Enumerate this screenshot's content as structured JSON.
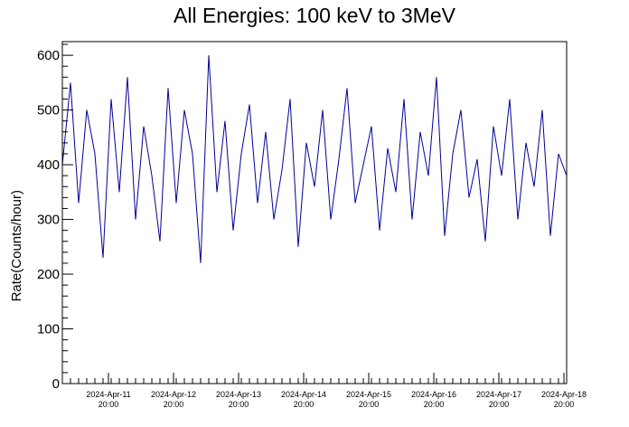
{
  "chart_data": {
    "type": "line",
    "title": "All Energies:  100 keV to 3MeV",
    "xlabel": "",
    "ylabel": "Rate(Counts/hour)",
    "ylim": [
      0,
      625
    ],
    "yticks": [
      "0",
      "100",
      "200",
      "300",
      "400",
      "500",
      "600"
    ],
    "xlim": [
      "2024-Apr-11 03:00",
      "2024-Apr-18 21:00"
    ],
    "xticks": [
      {
        "date": "2024-Apr-11",
        "time": "20:00"
      },
      {
        "date": "2024-Apr-12",
        "time": "20:00"
      },
      {
        "date": "2024-Apr-13",
        "time": "20:00"
      },
      {
        "date": "2024-Apr-14",
        "time": "20:00"
      },
      {
        "date": "2024-Apr-15",
        "time": "20:00"
      },
      {
        "date": "2024-Apr-16",
        "time": "20:00"
      },
      {
        "date": "2024-Apr-17",
        "time": "20:00"
      },
      {
        "date": "2024-Apr-18",
        "time": "20:00"
      }
    ],
    "grid": false,
    "series": [
      {
        "color": "#000099",
        "x": [
          "2024-Apr-11 03:00",
          "2024-Apr-11 06:00",
          "2024-Apr-11 09:00",
          "2024-Apr-11 12:00",
          "2024-Apr-11 15:00",
          "2024-Apr-11 18:00",
          "2024-Apr-11 21:00",
          "2024-Apr-12 00:00",
          "2024-Apr-12 03:00",
          "2024-Apr-12 06:00",
          "2024-Apr-12 09:00",
          "2024-Apr-12 12:00",
          "2024-Apr-12 15:00",
          "2024-Apr-12 18:00",
          "2024-Apr-12 21:00",
          "2024-Apr-13 00:00",
          "2024-Apr-13 03:00",
          "2024-Apr-13 06:00",
          "2024-Apr-13 09:00",
          "2024-Apr-13 12:00",
          "2024-Apr-13 15:00",
          "2024-Apr-13 18:00",
          "2024-Apr-13 21:00",
          "2024-Apr-14 00:00",
          "2024-Apr-14 03:00",
          "2024-Apr-14 06:00",
          "2024-Apr-14 09:00",
          "2024-Apr-14 12:00",
          "2024-Apr-14 15:00",
          "2024-Apr-14 18:00",
          "2024-Apr-14 21:00",
          "2024-Apr-15 00:00",
          "2024-Apr-15 03:00",
          "2024-Apr-15 06:00",
          "2024-Apr-15 09:00",
          "2024-Apr-15 12:00",
          "2024-Apr-15 15:00",
          "2024-Apr-15 18:00",
          "2024-Apr-15 21:00",
          "2024-Apr-16 00:00",
          "2024-Apr-16 03:00",
          "2024-Apr-16 06:00",
          "2024-Apr-16 09:00",
          "2024-Apr-16 12:00",
          "2024-Apr-16 15:00",
          "2024-Apr-16 18:00",
          "2024-Apr-16 21:00",
          "2024-Apr-17 00:00",
          "2024-Apr-17 03:00",
          "2024-Apr-17 06:00",
          "2024-Apr-17 09:00",
          "2024-Apr-17 12:00",
          "2024-Apr-17 15:00",
          "2024-Apr-17 18:00",
          "2024-Apr-17 21:00",
          "2024-Apr-18 00:00",
          "2024-Apr-18 03:00",
          "2024-Apr-18 06:00",
          "2024-Apr-18 09:00",
          "2024-Apr-18 12:00",
          "2024-Apr-18 15:00",
          "2024-Apr-18 18:00",
          "2024-Apr-18 21:00"
        ],
        "y": [
          400,
          550,
          330,
          500,
          420,
          230,
          520,
          350,
          560,
          300,
          470,
          380,
          260,
          540,
          330,
          500,
          420,
          220,
          600,
          350,
          480,
          280,
          420,
          510,
          330,
          460,
          300,
          390,
          520,
          250,
          440,
          360,
          500,
          300,
          410,
          540,
          330,
          400,
          470,
          280,
          430,
          350,
          520,
          300,
          460,
          380,
          560,
          270,
          420,
          500,
          340,
          410,
          260,
          470,
          380,
          520,
          300,
          440,
          360,
          500,
          270,
          420,
          380
        ]
      }
    ]
  }
}
